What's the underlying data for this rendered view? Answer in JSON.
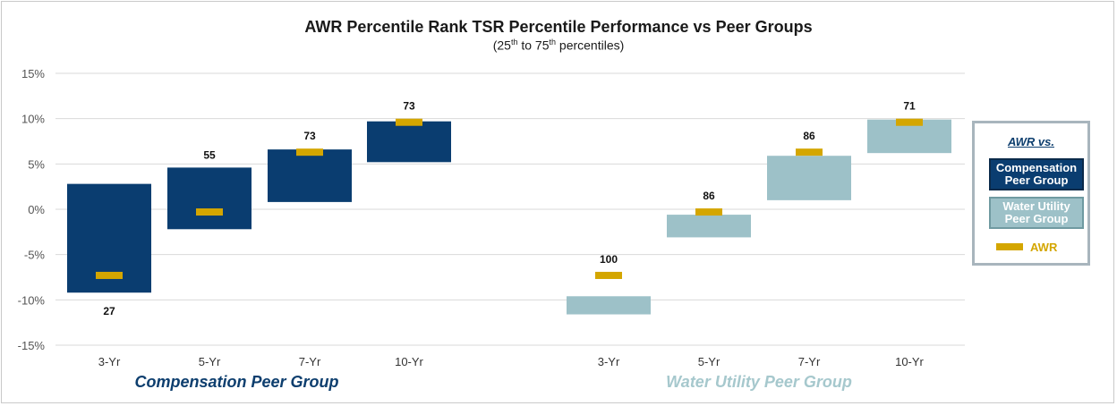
{
  "title": "AWR Percentile Rank TSR Percentile Performance vs Peer Groups",
  "subtitle": {
    "pre": "(25",
    "sup1": "th",
    "mid": " to 75",
    "sup2": "th",
    "post": " percentiles)"
  },
  "legend": {
    "title": "AWR vs.",
    "comp_label": "Compensation Peer Group",
    "water_label": "Water Utility Peer Group",
    "awr_label": "AWR"
  },
  "colors": {
    "comp": "#0a3d70",
    "water": "#9dc1c8",
    "awr": "#d4a600",
    "grid": "#d9d9d9",
    "group_comp_text": "#0d3e6e",
    "group_water_text": "#a6c8cd"
  },
  "chart_data": {
    "type": "bar",
    "subtype": "floating-range",
    "ylim": [
      -15,
      15
    ],
    "yticks": [
      15,
      10,
      5,
      0,
      -5,
      -10,
      -15
    ],
    "ytick_labels": [
      "15%",
      "10%",
      "5%",
      "0%",
      "-5%",
      "-10%",
      "-15%"
    ],
    "grid": true,
    "legend_position": "right",
    "groups": [
      {
        "name": "Compensation Peer Group",
        "series_key": "comp",
        "categories": [
          "3-Yr",
          "5-Yr",
          "7-Yr",
          "10-Yr"
        ],
        "p25": [
          -9.2,
          -2.2,
          0.8,
          5.2
        ],
        "p75": [
          2.8,
          4.6,
          6.6,
          9.7
        ],
        "awr": [
          -7.3,
          -0.3,
          6.3,
          9.6
        ],
        "rank": [
          "27",
          "55",
          "73",
          "73"
        ],
        "rank_below": [
          true,
          false,
          false,
          false
        ]
      },
      {
        "name": "Water Utility Peer Group",
        "series_key": "water",
        "categories": [
          "3-Yr",
          "5-Yr",
          "7-Yr",
          "10-Yr"
        ],
        "p25": [
          -11.6,
          -3.1,
          1.0,
          6.2
        ],
        "p75": [
          -9.6,
          -0.6,
          5.9,
          9.9
        ],
        "awr": [
          -7.3,
          -0.3,
          6.3,
          9.6
        ],
        "rank": [
          "100",
          "86",
          "86",
          "71"
        ],
        "rank_below": [
          false,
          false,
          false,
          false
        ]
      }
    ]
  }
}
